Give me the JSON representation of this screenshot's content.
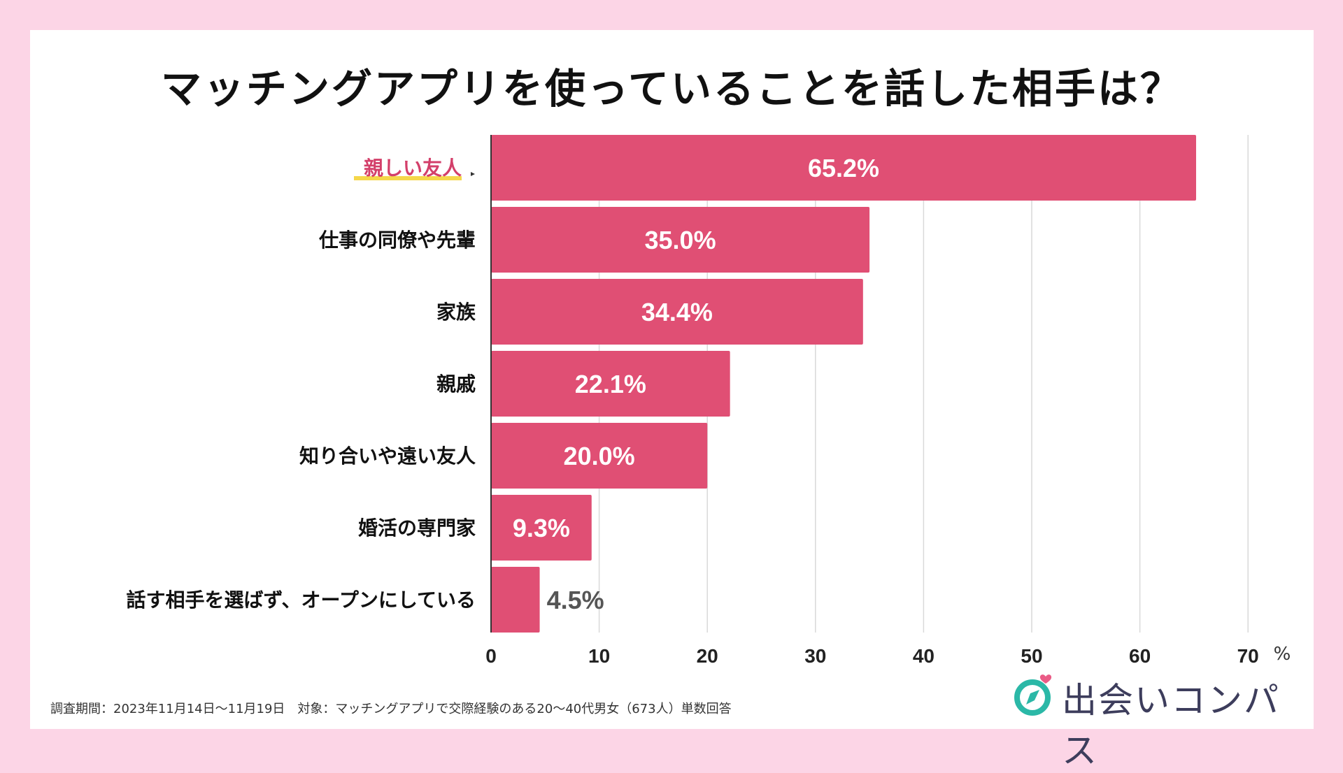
{
  "title": "マッチングアプリを使っていることを話した相手は？",
  "footnote": "調査期間：2023年11月14日〜11月19日　対象：マッチングアプリで交際経験のある20〜40代男女（673人）単数回答",
  "logo": {
    "text": "出会いコンパス",
    "icon": "compass-heart-icon"
  },
  "colors": {
    "bar": "#e04f74",
    "highlight_text": "#d33f6a",
    "highlight_underline": "#f5d74a",
    "grid": "#d9d9d9",
    "background": "#fcd5e6"
  },
  "chart_data": {
    "type": "bar",
    "orientation": "horizontal",
    "title": "マッチングアプリを使っていることを話した相手は？",
    "categories": [
      "親しい友人",
      "仕事の同僚や先輩",
      "家族",
      "親戚",
      "知り合いや遠い友人",
      "婚活の専門家",
      "話す相手を選ばず、オープンにしている"
    ],
    "values": [
      65.2,
      35.0,
      34.4,
      22.1,
      20.0,
      9.3,
      4.5
    ],
    "data_labels": [
      "65.2%",
      "35.0%",
      "34.4%",
      "22.1%",
      "20.0%",
      "9.3%",
      "4.5%"
    ],
    "highlight_index": 0,
    "xlim": [
      0,
      70
    ],
    "xticks": [
      0,
      10,
      20,
      30,
      40,
      50,
      60,
      70
    ],
    "xtick_labels": [
      "0",
      "10",
      "20",
      "30",
      "40",
      "50",
      "60",
      "70"
    ],
    "unit_label": "%",
    "grid": true
  }
}
